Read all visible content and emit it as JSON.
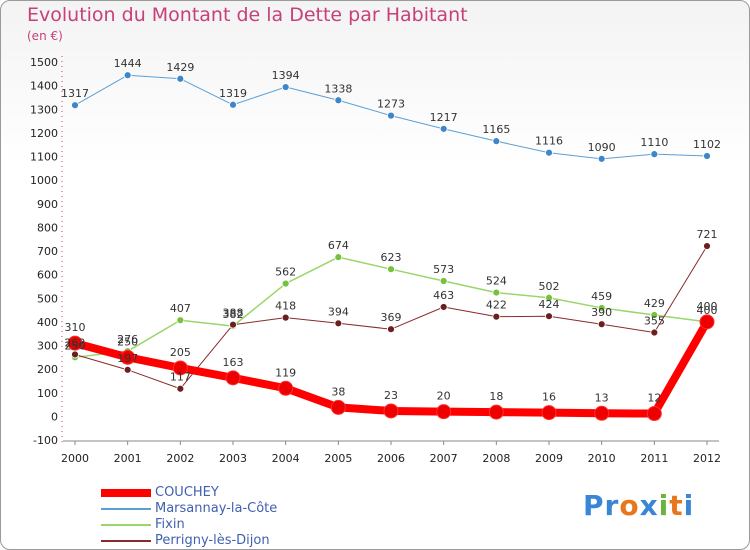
{
  "header": {
    "title": "Evolution du Montant de la Dette par Habitant",
    "unit": "(en €)"
  },
  "logo": {
    "text": "Proxiti",
    "letters": [
      "P",
      "r",
      "o",
      "x",
      "i",
      "t",
      "i"
    ],
    "colors": [
      "#3a86d6",
      "#3a86d6",
      "#e8761c",
      "#3a86d6",
      "#6ab33d",
      "#e8761c",
      "#3a86d6"
    ]
  },
  "chart_data": {
    "type": "line",
    "categories": [
      "2000",
      "2001",
      "2002",
      "2003",
      "2004",
      "2005",
      "2006",
      "2007",
      "2008",
      "2009",
      "2010",
      "2011",
      "2012"
    ],
    "ylim": [
      -100,
      1500
    ],
    "yticks": [
      -100,
      0,
      100,
      200,
      300,
      400,
      500,
      600,
      700,
      800,
      900,
      1000,
      1100,
      1200,
      1300,
      1400,
      1500
    ],
    "grid": false,
    "legend_position": "bottom-left",
    "series": [
      {
        "name": "Marsannay-la-Côte",
        "color": "#5b9fd6",
        "marker": "#3d86c8",
        "width": 1,
        "values": [
          1317,
          1444,
          1429,
          1319,
          1394,
          1338,
          1273,
          1217,
          1165,
          1116,
          1090,
          1110,
          1102
        ],
        "labels": [
          "1317",
          "1444",
          "1429",
          "1319",
          "1394",
          "1338",
          "1273",
          "1217",
          "1165",
          "1116",
          "1090",
          "1110",
          "1102"
        ]
      },
      {
        "name": "Fixin",
        "color": "#9ad66a",
        "marker": "#76c23e",
        "width": 1.5,
        "values": [
          250,
          276,
          407,
          382,
          562,
          674,
          623,
          573,
          524,
          502,
          459,
          429,
          400
        ],
        "labels": [
          "250",
          "276",
          "407",
          "382",
          "562",
          "674",
          "623",
          "573",
          "524",
          "502",
          "459",
          "429",
          "400"
        ]
      },
      {
        "name": "Perrigny-lès-Dijon",
        "color": "#8a2a2a",
        "marker": "#6b1f1f",
        "width": 1,
        "values": [
          262,
          197,
          117,
          388,
          418,
          394,
          369,
          463,
          422,
          424,
          390,
          355,
          721
        ],
        "labels": [
          "262",
          "197",
          "117",
          "388",
          "418",
          "394",
          "369",
          "463",
          "422",
          "424",
          "390",
          "355",
          "721"
        ]
      },
      {
        "name": "COUCHEY",
        "color": "#ff0000",
        "marker": "#ee0000",
        "width": 8,
        "values": [
          310,
          250,
          205,
          163,
          119,
          38,
          23,
          20,
          18,
          16,
          13,
          12,
          400
        ],
        "labels": [
          "310",
          "250",
          "205",
          "163",
          "119",
          "38",
          "23",
          "20",
          "18",
          "16",
          "13",
          "12",
          "400"
        ]
      }
    ]
  },
  "legend": {
    "items": [
      {
        "label": "COUCHEY",
        "color": "#ff0000",
        "width": 8
      },
      {
        "label": "Marsannay-la-Côte",
        "color": "#5b9fd6",
        "width": 2
      },
      {
        "label": "Fixin",
        "color": "#9ad66a",
        "width": 2
      },
      {
        "label": "Perrigny-lès-Dijon",
        "color": "#8a2a2a",
        "width": 2
      }
    ]
  }
}
